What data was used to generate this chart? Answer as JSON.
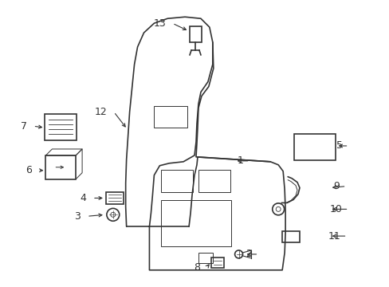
{
  "bg_color": "#ffffff",
  "fig_width": 4.89,
  "fig_height": 3.6,
  "dpi": 100,
  "line_color": "#333333",
  "line_width": 1.2,
  "thin_line": 0.7,
  "label_fontsize": 9
}
